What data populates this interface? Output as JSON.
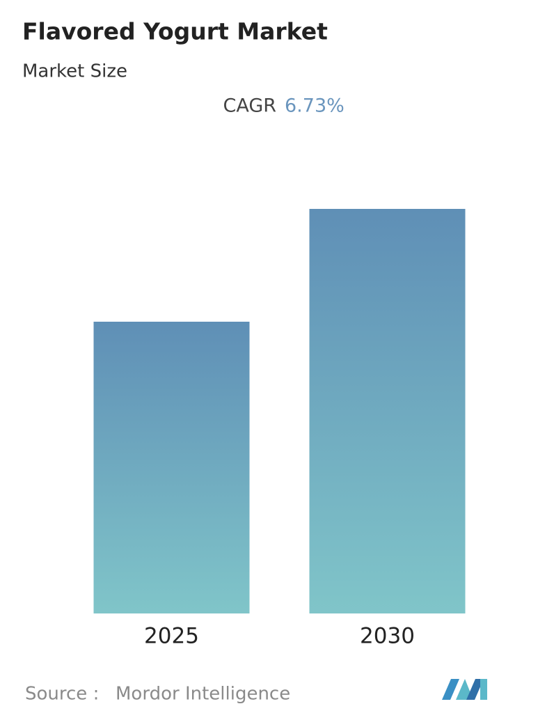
{
  "chart_data": {
    "type": "bar",
    "title": "Flavored Yogurt Market",
    "subtitle": "Market Size",
    "cagr_label": "CAGR",
    "cagr_value": "6.73%",
    "categories": [
      "2025",
      "2030"
    ],
    "values": [
      41.9,
      58.1
    ],
    "ylim": [
      0,
      60
    ],
    "color_top": "#5f8fb6",
    "color_bottom": "#80c5c9",
    "source_label": "Source :",
    "source": "Mordor Intelligence"
  }
}
